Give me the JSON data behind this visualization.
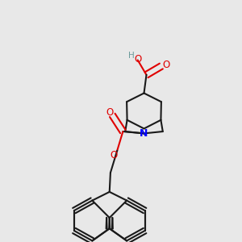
{
  "background_color": "#e8e8e8",
  "bond_color": "#1a1a1a",
  "bond_width": 1.5,
  "atom_colors": {
    "O": "#e00000",
    "N": "#0000ff",
    "C": "#1a1a1a",
    "H": "#6a9a9a"
  },
  "font_size": 8.5
}
